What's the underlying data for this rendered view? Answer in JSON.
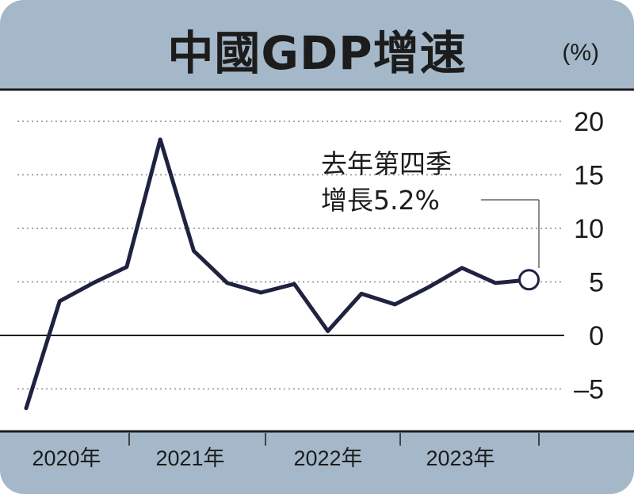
{
  "header": {
    "title": "中國GDP增速",
    "unit": "(%)"
  },
  "colors": {
    "header_bg": "#a4b8c9",
    "line": "#1f2240",
    "text": "#1c1c1c",
    "grid": "#8a8a8a"
  },
  "chart_data": {
    "type": "line",
    "title": "中國GDP增速",
    "ylabel": "(%)",
    "ylim": [
      -7.5,
      21
    ],
    "yticks": [
      20,
      15,
      10,
      5,
      0,
      -5
    ],
    "ytick_labels": [
      "20",
      "15",
      "10",
      "5",
      "0",
      "–5"
    ],
    "x_groups": [
      "2020年",
      "2021年",
      "2022年",
      "2023年"
    ],
    "x": [
      "2020 Q1",
      "2020 Q2",
      "2020 Q3",
      "2020 Q4",
      "2021 Q1",
      "2021 Q2",
      "2021 Q3",
      "2021 Q4",
      "2022 Q1",
      "2022 Q2",
      "2022 Q3",
      "2022 Q4",
      "2023 Q1",
      "2023 Q2",
      "2023 Q3",
      "2023 Q4"
    ],
    "series": [
      {
        "values": [
          -6.8,
          3.2,
          4.9,
          6.4,
          18.3,
          7.9,
          4.9,
          4.0,
          4.8,
          0.4,
          3.9,
          2.9,
          4.5,
          6.3,
          4.9,
          5.2
        ]
      }
    ],
    "annotation": {
      "line1": "去年第四季",
      "line2": "增長5.2%"
    },
    "grid": true
  }
}
